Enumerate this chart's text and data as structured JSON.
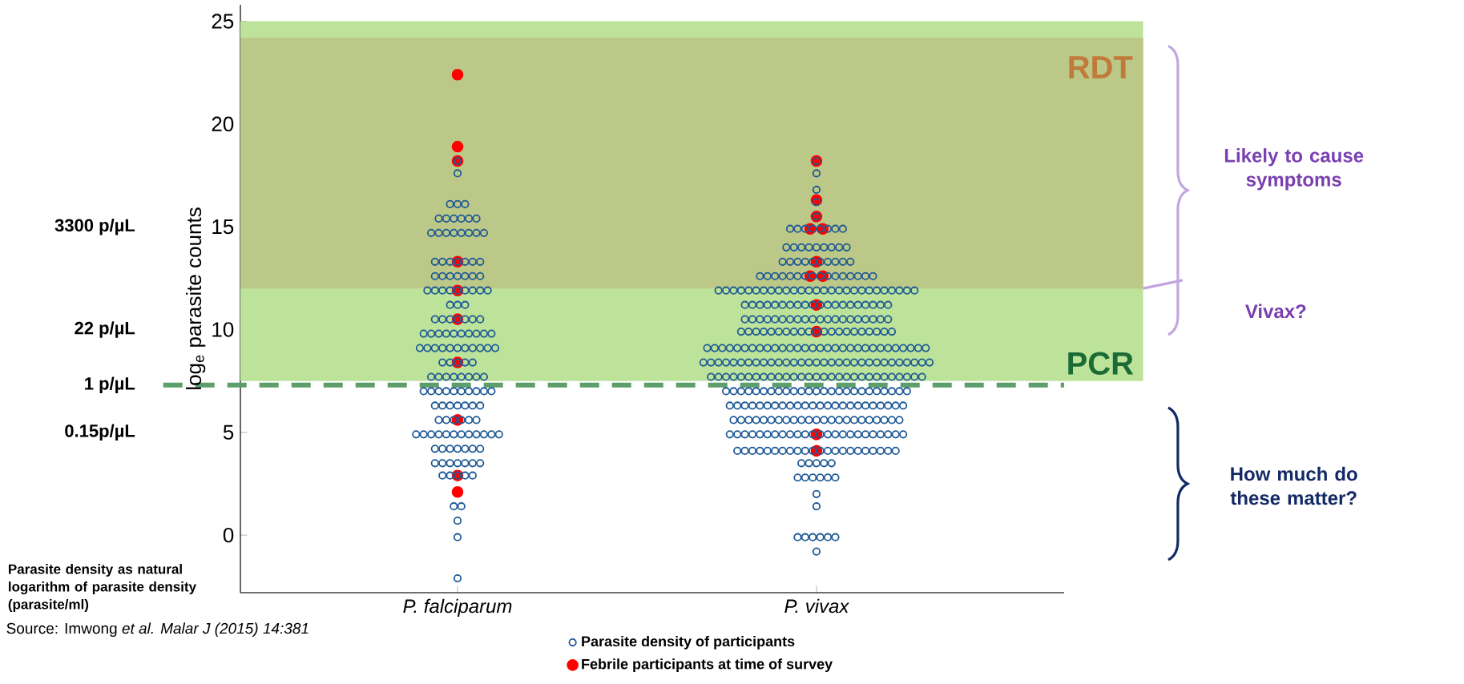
{
  "chart_data": {
    "type": "scatter",
    "ylabel": "log$_{e}$ parasite counts",
    "categories": [
      "P. falciparum",
      "P. vivax"
    ],
    "ylim": [
      -2.8,
      25.8
    ],
    "yticks": [
      0,
      5,
      10,
      15,
      20,
      25
    ],
    "marker": "circle",
    "legend": "bottom",
    "grid": false,
    "series": [
      {
        "name": "Parasite density of participants",
        "color": "#1f5a96",
        "x": [
          "P. falciparum",
          "P. falciparum",
          "P. falciparum",
          "P. falciparum",
          "P. falciparum",
          "P. falciparum",
          "P. falciparum",
          "P. falciparum",
          "P. falciparum",
          "P. falciparum",
          "P. falciparum",
          "P. falciparum",
          "P. falciparum",
          "P. falciparum",
          "P. falciparum",
          "P. falciparum",
          "P. falciparum",
          "P. falciparum",
          "P. falciparum",
          "P. falciparum",
          "P. falciparum",
          "P. falciparum",
          "P. falciparum",
          "P. falciparum",
          "P. falciparum",
          "P. falciparum",
          "P. falciparum",
          "P. falciparum",
          "P. falciparum",
          "P. falciparum",
          "P. falciparum",
          "P. falciparum",
          "P. falciparum",
          "P. falciparum",
          "P. falciparum",
          "P. falciparum",
          "P. falciparum",
          "P. falciparum",
          "P. falciparum",
          "P. falciparum",
          "P. falciparum",
          "P. falciparum",
          "P. falciparum",
          "P. falciparum",
          "P. falciparum",
          "P. falciparum",
          "P. falciparum",
          "P. falciparum",
          "P. falciparum",
          "P. falciparum",
          "P. falciparum",
          "P. falciparum",
          "P. falciparum",
          "P. falciparum",
          "P. falciparum",
          "P. falciparum",
          "P. falciparum",
          "P. falciparum",
          "P. falciparum",
          "P. falciparum",
          "P. falciparum",
          "P. falciparum",
          "P. falciparum",
          "P. falciparum",
          "P. falciparum",
          "P. falciparum",
          "P. falciparum",
          "P. falciparum",
          "P. falciparum",
          "P. falciparum",
          "P. falciparum",
          "P. falciparum",
          "P. falciparum",
          "P. falciparum",
          "P. falciparum",
          "P. falciparum",
          "P. falciparum",
          "P. falciparum",
          "P. falciparum",
          "P. falciparum",
          "P. falciparum",
          "P. falciparum",
          "P. falciparum",
          "P. falciparum",
          "P. falciparum",
          "P. falciparum",
          "P. falciparum",
          "P. falciparum",
          "P. falciparum",
          "P. falciparum",
          "P. falciparum",
          "P. falciparum",
          "P. falciparum",
          "P. falciparum",
          "P. falciparum",
          "P. falciparum",
          "P. falciparum",
          "P. falciparum",
          "P. falciparum",
          "P. falciparum",
          "P. falciparum",
          "P. falciparum",
          "P. falciparum",
          "P. falciparum",
          "P. falciparum",
          "P. falciparum",
          "P. falciparum",
          "P. falciparum",
          "P. falciparum",
          "P. falciparum",
          "P. falciparum",
          "P. falciparum",
          "P. falciparum",
          "P. falciparum",
          "P. falciparum",
          "P. falciparum",
          "P. falciparum",
          "P. falciparum",
          "P. falciparum",
          "P. falciparum",
          "P. falciparum",
          "P. falciparum",
          "P. falciparum",
          "P. falciparum",
          "P. falciparum",
          "P. falciparum",
          "P. falciparum",
          "P. falciparum",
          "P. falciparum",
          "P. falciparum",
          "P. falciparum",
          "P. falciparum",
          "P. falciparum",
          "P. falciparum",
          "P. falciparum",
          "P. falciparum",
          "P. falciparum",
          "P. falciparum",
          "P. falciparum",
          "P. falciparum",
          "P. falciparum",
          "P. falciparum",
          "P. falciparum",
          "P. falciparum",
          "P. falciparum",
          "P. vivax",
          "P. vivax",
          "P. vivax",
          "P. vivax",
          "P. vivax",
          "P. vivax",
          "P. vivax",
          "P. vivax",
          "P. vivax",
          "P. vivax",
          "P. vivax",
          "P. vivax",
          "P. vivax",
          "P. vivax",
          "P. vivax",
          "P. vivax",
          "P. vivax",
          "P. vivax",
          "P. vivax",
          "P. vivax",
          "P. vivax",
          "P. vivax",
          "P. vivax",
          "P. vivax",
          "P. vivax",
          "P. vivax",
          "P. vivax",
          "P. vivax",
          "P. vivax",
          "P. vivax",
          "P. vivax",
          "P. vivax",
          "P. vivax",
          "P. vivax",
          "P. vivax",
          "P. vivax",
          "P. vivax",
          "P. vivax",
          "P. vivax",
          "P. vivax",
          "P. vivax",
          "P. vivax",
          "P. vivax",
          "P. vivax",
          "P. vivax",
          "P. vivax",
          "P. vivax",
          "P. vivax",
          "P. vivax",
          "P. vivax",
          "P. vivax",
          "P. vivax",
          "P. vivax",
          "P. vivax",
          "P. vivax",
          "P. vivax",
          "P. vivax",
          "P. vivax",
          "P. vivax",
          "P. vivax",
          "P. vivax",
          "P. vivax",
          "P. vivax",
          "P. vivax",
          "P. vivax",
          "P. vivax",
          "P. vivax",
          "P. vivax",
          "P. vivax",
          "P. vivax",
          "P. vivax",
          "P. vivax",
          "P. vivax",
          "P. vivax",
          "P. vivax",
          "P. vivax",
          "P. vivax",
          "P. vivax",
          "P. vivax",
          "P. vivax",
          "P. vivax",
          "P. vivax",
          "P. vivax",
          "P. vivax",
          "P. vivax",
          "P. vivax",
          "P. vivax",
          "P. vivax",
          "P. vivax",
          "P. vivax",
          "P. vivax",
          "P. vivax",
          "P. vivax",
          "P. vivax",
          "P. vivax",
          "P. vivax",
          "P. vivax",
          "P. vivax",
          "P. vivax",
          "P. vivax",
          "P. vivax",
          "P. vivax",
          "P. vivax",
          "P. vivax",
          "P. vivax",
          "P. vivax",
          "P. vivax",
          "P. vivax",
          "P. vivax",
          "P. vivax",
          "P. vivax",
          "P. vivax",
          "P. vivax",
          "P. vivax",
          "P. vivax",
          "P. vivax",
          "P. vivax",
          "P. vivax",
          "P. vivax",
          "P. vivax",
          "P. vivax",
          "P. vivax",
          "P. vivax",
          "P. vivax",
          "P. vivax",
          "P. vivax",
          "P. vivax",
          "P. vivax",
          "P. vivax",
          "P. vivax",
          "P. vivax",
          "P. vivax",
          "P. vivax",
          "P. vivax",
          "P. vivax",
          "P. vivax",
          "P. vivax",
          "P. vivax",
          "P. vivax",
          "P. vivax",
          "P. vivax",
          "P. vivax",
          "P. vivax",
          "P. vivax",
          "P. vivax",
          "P. vivax",
          "P. vivax",
          "P. vivax",
          "P. vivax",
          "P. vivax",
          "P. vivax",
          "P. vivax",
          "P. vivax",
          "P. vivax",
          "P. vivax",
          "P. vivax",
          "P. vivax",
          "P. vivax",
          "P. vivax",
          "P. vivax",
          "P. vivax",
          "P. vivax",
          "P. vivax",
          "P. vivax",
          "P. vivax",
          "P. vivax",
          "P. vivax",
          "P. vivax",
          "P. vivax",
          "P. vivax",
          "P. vivax",
          "P. vivax",
          "P. vivax",
          "P. vivax",
          "P. vivax",
          "P. vivax",
          "P. vivax",
          "P. vivax",
          "P. vivax",
          "P. vivax",
          "P. vivax",
          "P. vivax",
          "P. vivax",
          "P. vivax",
          "P. vivax",
          "P. vivax",
          "P. vivax",
          "P. vivax",
          "P. vivax",
          "P. vivax",
          "P. vivax",
          "P. vivax",
          "P. vivax",
          "P. vivax",
          "P. vivax",
          "P. vivax",
          "P. vivax",
          "P. vivax",
          "P. vivax",
          "P. vivax",
          "P. vivax",
          "P. vivax",
          "P. vivax",
          "P. vivax",
          "P. vivax",
          "P. vivax",
          "P. vivax",
          "P. vivax",
          "P. vivax",
          "P. vivax",
          "P. vivax",
          "P. vivax",
          "P. vivax",
          "P. vivax",
          "P. vivax",
          "P. vivax",
          "P. vivax",
          "P. vivax",
          "P. vivax",
          "P. vivax",
          "P. vivax",
          "P. vivax",
          "P. vivax",
          "P. vivax",
          "P. vivax",
          "P. vivax",
          "P. vivax",
          "P. vivax",
          "P. vivax",
          "P. vivax",
          "P. vivax",
          "P. vivax",
          "P. vivax",
          "P. vivax",
          "P. vivax",
          "P. vivax",
          "P. vivax",
          "P. vivax",
          "P. vivax",
          "P. vivax",
          "P. vivax",
          "P. vivax",
          "P. vivax",
          "P. vivax",
          "P. vivax",
          "P. vivax",
          "P. vivax",
          "P. vivax",
          "P. vivax",
          "P. vivax",
          "P. vivax",
          "P. vivax",
          "P. vivax",
          "P. vivax",
          "P. vivax",
          "P. vivax",
          "P. vivax",
          "P. vivax",
          "P. vivax",
          "P. vivax",
          "P. vivax",
          "P. vivax",
          "P. vivax",
          "P. vivax",
          "P. vivax",
          "P. vivax",
          "P. vivax",
          "P. vivax",
          "P. vivax",
          "P. vivax",
          "P. vivax",
          "P. vivax",
          "P. vivax",
          "P. vivax",
          "P. vivax",
          "P. vivax",
          "P. vivax",
          "P. vivax",
          "P. vivax",
          "P. vivax",
          "P. vivax",
          "P. vivax",
          "P. vivax",
          "P. vivax",
          "P. vivax",
          "P. vivax",
          "P. vivax",
          "P. vivax",
          "P. vivax",
          "P. vivax",
          "P. vivax",
          "P. vivax",
          "P. vivax",
          "P. vivax",
          "P. vivax",
          "P. vivax",
          "P. vivax",
          "P. vivax",
          "P. vivax",
          "P. vivax",
          "P. vivax",
          "P. vivax",
          "P. vivax",
          "P. vivax",
          "P. vivax",
          "P. vivax",
          "P. vivax",
          "P. vivax",
          "P. vivax",
          "P. vivax",
          "P. vivax",
          "P. vivax",
          "P. vivax",
          "P. vivax",
          "P. vivax",
          "P. vivax",
          "P. vivax",
          "P. vivax",
          "P. vivax",
          "P. vivax",
          "P. vivax",
          "P. vivax",
          "P. vivax",
          "P. vivax",
          "P. vivax",
          "P. vivax",
          "P. vivax",
          "P. vivax",
          "P. vivax",
          "P. vivax",
          "P. vivax",
          "P. vivax",
          "P. vivax",
          "P. vivax",
          "P. vivax",
          "P. vivax",
          "P. vivax",
          "P. vivax",
          "P. vivax",
          "P. vivax",
          "P. vivax",
          "P. vivax",
          "P. vivax",
          "P. vivax",
          "P. vivax",
          "P. vivax",
          "P. vivax",
          "P. vivax",
          "P. vivax",
          "P. vivax",
          "P. vivax",
          "P. vivax",
          "P. vivax",
          "P. vivax",
          "P. vivax",
          "P. vivax",
          "P. vivax",
          "P. vivax",
          "P. vivax",
          "P. vivax",
          "P. vivax",
          "P. vivax",
          "P. vivax",
          "P. vivax"
        ],
        "values": [
          18.2,
          17.6,
          16.1,
          16.1,
          16.1,
          15.4,
          15.4,
          15.4,
          15.4,
          15.4,
          15.4,
          14.7,
          14.7,
          14.7,
          14.7,
          14.7,
          14.7,
          14.7,
          14.7,
          13.3,
          13.3,
          13.3,
          13.3,
          13.3,
          13.3,
          13.3,
          12.6,
          12.6,
          12.6,
          12.6,
          12.6,
          12.6,
          12.6,
          11.9,
          11.9,
          11.9,
          11.9,
          11.9,
          11.9,
          11.9,
          11.9,
          11.9,
          11.2,
          11.2,
          11.2,
          10.5,
          10.5,
          10.5,
          10.5,
          10.5,
          10.5,
          10.5,
          9.8,
          9.8,
          9.8,
          9.8,
          9.8,
          9.8,
          9.8,
          9.8,
          9.8,
          9.8,
          9.1,
          9.1,
          9.1,
          9.1,
          9.1,
          9.1,
          9.1,
          9.1,
          9.1,
          9.1,
          9.1,
          8.4,
          8.4,
          8.4,
          8.4,
          8.4,
          7.7,
          7.7,
          7.7,
          7.7,
          7.7,
          7.7,
          7.7,
          7.7,
          7.0,
          7.0,
          7.0,
          7.0,
          7.0,
          7.0,
          7.0,
          7.0,
          7.0,
          7.0,
          6.3,
          6.3,
          6.3,
          6.3,
          6.3,
          6.3,
          6.3,
          5.6,
          5.6,
          5.6,
          5.6,
          5.6,
          5.6,
          4.9,
          4.9,
          4.9,
          4.9,
          4.9,
          4.9,
          4.9,
          4.9,
          4.9,
          4.9,
          4.9,
          4.9,
          4.2,
          4.2,
          4.2,
          4.2,
          4.2,
          4.2,
          4.2,
          3.5,
          3.5,
          3.5,
          3.5,
          3.5,
          3.5,
          3.5,
          2.9,
          2.9,
          2.9,
          2.9,
          2.9,
          1.4,
          1.4,
          0.7,
          -0.1,
          -2.1,
          18.2,
          17.6,
          16.8,
          16.2,
          15.5,
          14.9,
          14.9,
          14.9,
          14.9,
          14.9,
          14.9,
          14.9,
          14.9,
          14.0,
          14.0,
          14.0,
          14.0,
          14.0,
          14.0,
          14.0,
          14.0,
          14.0,
          13.3,
          13.3,
          13.3,
          13.3,
          13.3,
          13.3,
          13.3,
          13.3,
          13.3,
          13.3,
          12.6,
          12.6,
          12.6,
          12.6,
          12.6,
          12.6,
          12.6,
          12.6,
          12.6,
          12.6,
          12.6,
          12.6,
          12.6,
          12.6,
          12.6,
          12.6,
          11.9,
          11.9,
          11.9,
          11.9,
          11.9,
          11.9,
          11.9,
          11.9,
          11.9,
          11.9,
          11.9,
          11.9,
          11.9,
          11.9,
          11.9,
          11.9,
          11.9,
          11.9,
          11.9,
          11.9,
          11.9,
          11.9,
          11.9,
          11.9,
          11.9,
          11.9,
          11.9,
          11.2,
          11.2,
          11.2,
          11.2,
          11.2,
          11.2,
          11.2,
          11.2,
          11.2,
          11.2,
          11.2,
          11.2,
          11.2,
          11.2,
          11.2,
          11.2,
          11.2,
          11.2,
          11.2,
          11.2,
          10.5,
          10.5,
          10.5,
          10.5,
          10.5,
          10.5,
          10.5,
          10.5,
          10.5,
          10.5,
          10.5,
          10.5,
          10.5,
          10.5,
          10.5,
          10.5,
          10.5,
          10.5,
          10.5,
          10.5,
          9.9,
          9.9,
          9.9,
          9.9,
          9.9,
          9.9,
          9.9,
          9.9,
          9.9,
          9.9,
          9.9,
          9.9,
          9.9,
          9.9,
          9.9,
          9.9,
          9.9,
          9.9,
          9.9,
          9.9,
          9.9,
          9.1,
          9.1,
          9.1,
          9.1,
          9.1,
          9.1,
          9.1,
          9.1,
          9.1,
          9.1,
          9.1,
          9.1,
          9.1,
          9.1,
          9.1,
          9.1,
          9.1,
          9.1,
          9.1,
          9.1,
          9.1,
          9.1,
          9.1,
          9.1,
          9.1,
          9.1,
          9.1,
          9.1,
          9.1,
          9.1,
          8.4,
          8.4,
          8.4,
          8.4,
          8.4,
          8.4,
          8.4,
          8.4,
          8.4,
          8.4,
          8.4,
          8.4,
          8.4,
          8.4,
          8.4,
          8.4,
          8.4,
          8.4,
          8.4,
          8.4,
          8.4,
          8.4,
          8.4,
          8.4,
          8.4,
          8.4,
          8.4,
          8.4,
          8.4,
          8.4,
          8.4,
          7.7,
          7.7,
          7.7,
          7.7,
          7.7,
          7.7,
          7.7,
          7.7,
          7.7,
          7.7,
          7.7,
          7.7,
          7.7,
          7.7,
          7.7,
          7.7,
          7.7,
          7.7,
          7.7,
          7.7,
          7.7,
          7.7,
          7.7,
          7.7,
          7.7,
          7.7,
          7.7,
          7.7,
          7.7,
          7.0,
          7.0,
          7.0,
          7.0,
          7.0,
          7.0,
          7.0,
          7.0,
          7.0,
          7.0,
          7.0,
          7.0,
          7.0,
          7.0,
          7.0,
          7.0,
          7.0,
          7.0,
          7.0,
          7.0,
          7.0,
          7.0,
          7.0,
          7.0,
          7.0,
          6.3,
          6.3,
          6.3,
          6.3,
          6.3,
          6.3,
          6.3,
          6.3,
          6.3,
          6.3,
          6.3,
          6.3,
          6.3,
          6.3,
          6.3,
          6.3,
          6.3,
          6.3,
          6.3,
          6.3,
          6.3,
          6.3,
          6.3,
          6.3,
          5.6,
          5.6,
          5.6,
          5.6,
          5.6,
          5.6,
          5.6,
          5.6,
          5.6,
          5.6,
          5.6,
          5.6,
          5.6,
          5.6,
          5.6,
          5.6,
          5.6,
          5.6,
          5.6,
          5.6,
          5.6,
          5.6,
          5.6,
          4.9,
          4.9,
          4.9,
          4.9,
          4.9,
          4.9,
          4.9,
          4.9,
          4.9,
          4.9,
          4.9,
          4.9,
          4.9,
          4.9,
          4.9,
          4.9,
          4.9,
          4.9,
          4.9,
          4.9,
          4.9,
          4.9,
          4.9,
          4.9,
          4.1,
          4.1,
          4.1,
          4.1,
          4.1,
          4.1,
          4.1,
          4.1,
          4.1,
          4.1,
          4.1,
          4.1,
          4.1,
          4.1,
          4.1,
          4.1,
          4.1,
          4.1,
          4.1,
          4.1,
          4.1,
          4.1,
          3.5,
          3.5,
          3.5,
          3.5,
          3.5,
          2.8,
          2.8,
          2.8,
          2.8,
          2.8,
          2.8,
          2.0,
          1.4,
          -0.1,
          -0.1,
          -0.1,
          -0.1,
          -0.1,
          -0.1,
          -0.8
        ]
      },
      {
        "name": "Febrile participants at time of survey",
        "color": "#ff0000",
        "x": [
          "P. falciparum",
          "P. falciparum",
          "P. falciparum",
          "P. falciparum",
          "P. falciparum",
          "P. falciparum",
          "P. falciparum",
          "P. falciparum",
          "P. falciparum",
          "P. falciparum",
          "P. vivax",
          "P. vivax",
          "P. vivax",
          "P. vivax",
          "P. vivax",
          "P. vivax",
          "P. vivax",
          "P. vivax",
          "P. vivax",
          "P. vivax",
          "P. vivax",
          "P. vivax"
        ],
        "values": [
          22.4,
          18.9,
          18.2,
          13.3,
          11.9,
          10.5,
          8.4,
          5.6,
          2.9,
          2.1,
          18.2,
          16.3,
          15.5,
          14.9,
          14.9,
          13.3,
          12.6,
          12.6,
          11.2,
          9.9,
          4.9,
          4.1
        ]
      }
    ],
    "bands": [
      {
        "axis": "y",
        "from": 7.5,
        "to": 25,
        "label": "PCR",
        "color": "#bde39a"
      },
      {
        "axis": "y",
        "from": 12,
        "to": 24.2,
        "label": "RDT",
        "color": "#bcc887"
      }
    ],
    "ref_lines": [
      {
        "axis": "y",
        "value": 7.3,
        "color": "#5c9f6b",
        "line_style": "dashed"
      }
    ],
    "annotations": [
      "3300 p/µL",
      "22 p/µL",
      "1 p/µL",
      "0.15p/µL",
      "Likely to cause symptoms",
      "Vivax?",
      "How much do these matter?",
      "Parasite density as natural logarithm of parasite density (parasite/ml)",
      "Source: Imwong *et al. Malar J (2015) 14:381*"
    ]
  }
}
